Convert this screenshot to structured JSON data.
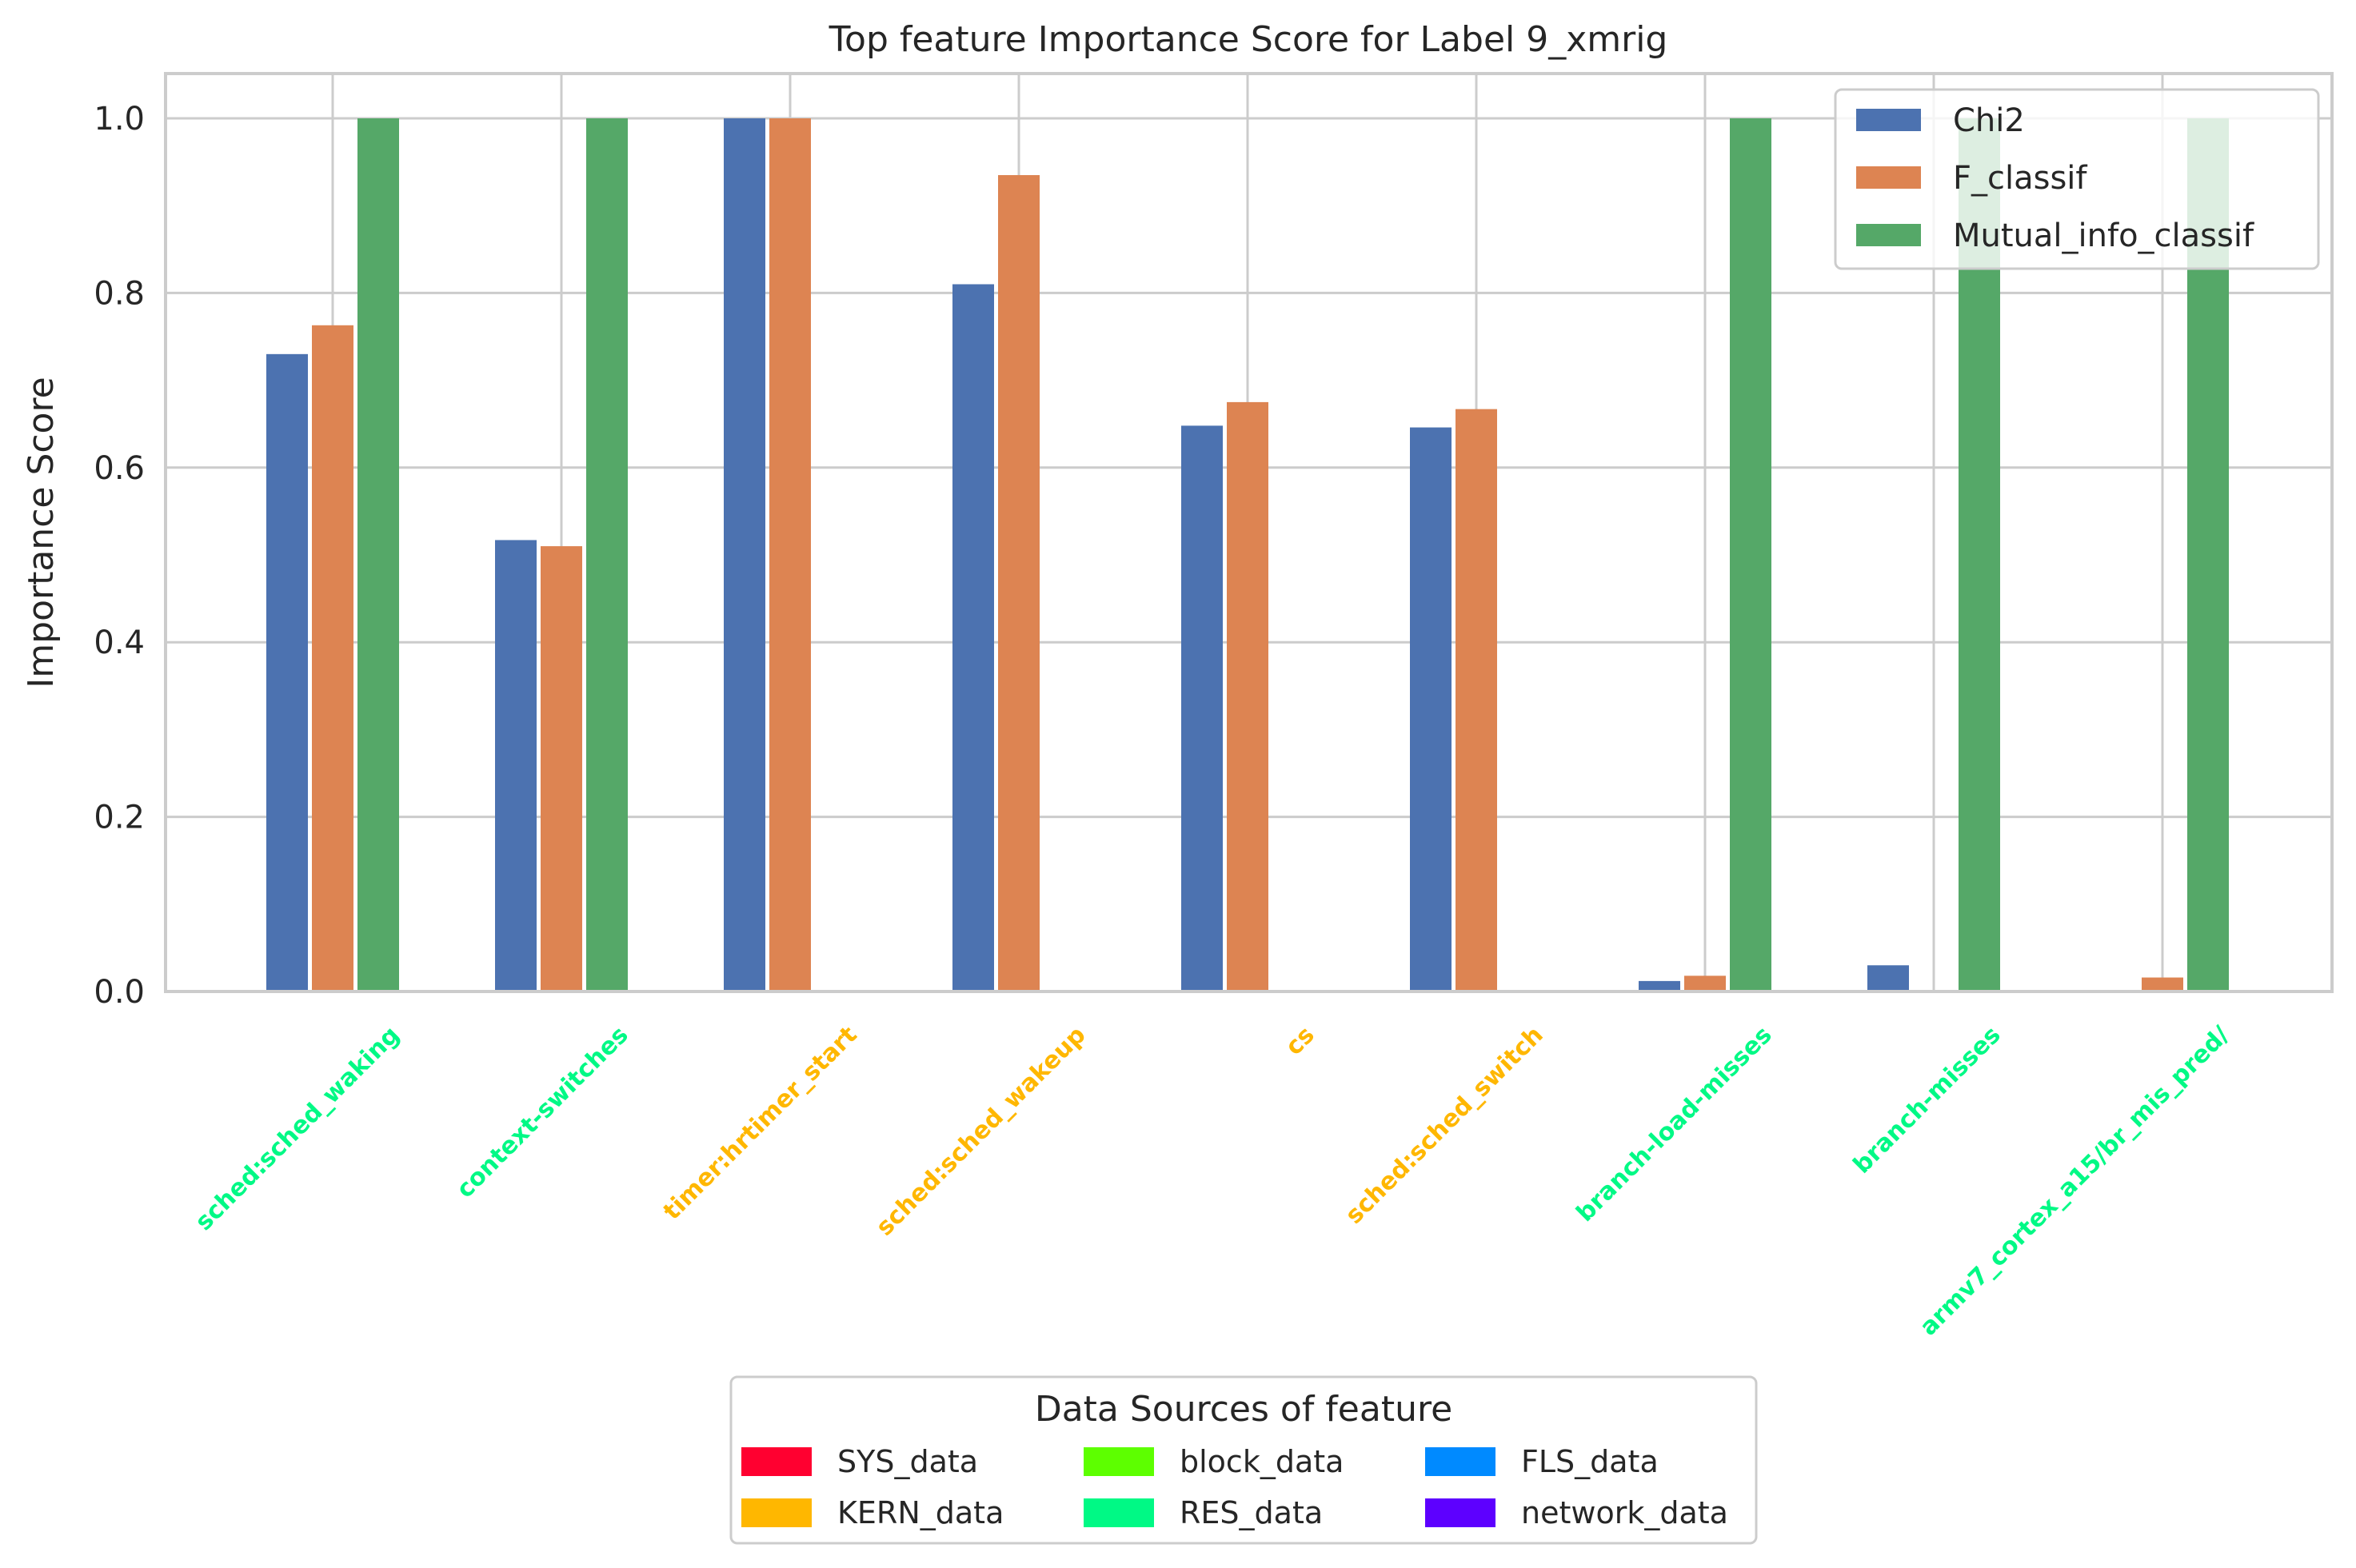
{
  "chart_data": {
    "type": "bar",
    "title": "Top feature Importance Score for Label 9_xmrig",
    "xlabel": "",
    "ylabel": "Importance Score",
    "ylim": [
      0,
      1.05
    ],
    "yticks": [
      "0.0",
      "0.2",
      "0.4",
      "0.6",
      "0.8",
      "1.0"
    ],
    "ytick_values": [
      0,
      0.2,
      0.4,
      0.6,
      0.8,
      1.0
    ],
    "grid": true,
    "categories": [
      "sched:sched_waking",
      "context-switches",
      "timer:hrtimer_start",
      "sched:sched_wakeup",
      "cs",
      "sched:sched_switch",
      "branch-load-misses",
      "branch-misses",
      "armv7_cortex_a15/br_mis_pred/"
    ],
    "category_colors": [
      "#00f985",
      "#00f985",
      "#ffb700",
      "#ffb700",
      "#ffb700",
      "#ffb700",
      "#00f985",
      "#00f985",
      "#00f985"
    ],
    "series": [
      {
        "name": "Chi2",
        "color": "#4c72b0",
        "values": [
          0.73,
          0.517,
          1.0,
          0.81,
          0.648,
          0.646,
          0.012,
          0.03,
          0.0
        ]
      },
      {
        "name": "F_classif",
        "color": "#dd8452",
        "values": [
          0.763,
          0.51,
          1.0,
          0.935,
          0.675,
          0.667,
          0.018,
          0.0,
          0.016
        ]
      },
      {
        "name": "Mutual_info_classif",
        "color": "#55a868",
        "values": [
          1.0,
          1.0,
          0.0,
          0.0,
          0.0,
          0.0,
          1.0,
          1.0,
          1.0
        ]
      }
    ],
    "legend_position": "top-right",
    "source_legend": {
      "title": "Data Sources of feature",
      "entries": [
        {
          "name": "SYS_data",
          "color": "#ff0030"
        },
        {
          "name": "KERN_data",
          "color": "#ffb700"
        },
        {
          "name": "block_data",
          "color": "#5dff00"
        },
        {
          "name": "RES_data",
          "color": "#00f985"
        },
        {
          "name": "FLS_data",
          "color": "#008aff"
        },
        {
          "name": "network_data",
          "color": "#5d00ff"
        }
      ]
    }
  }
}
